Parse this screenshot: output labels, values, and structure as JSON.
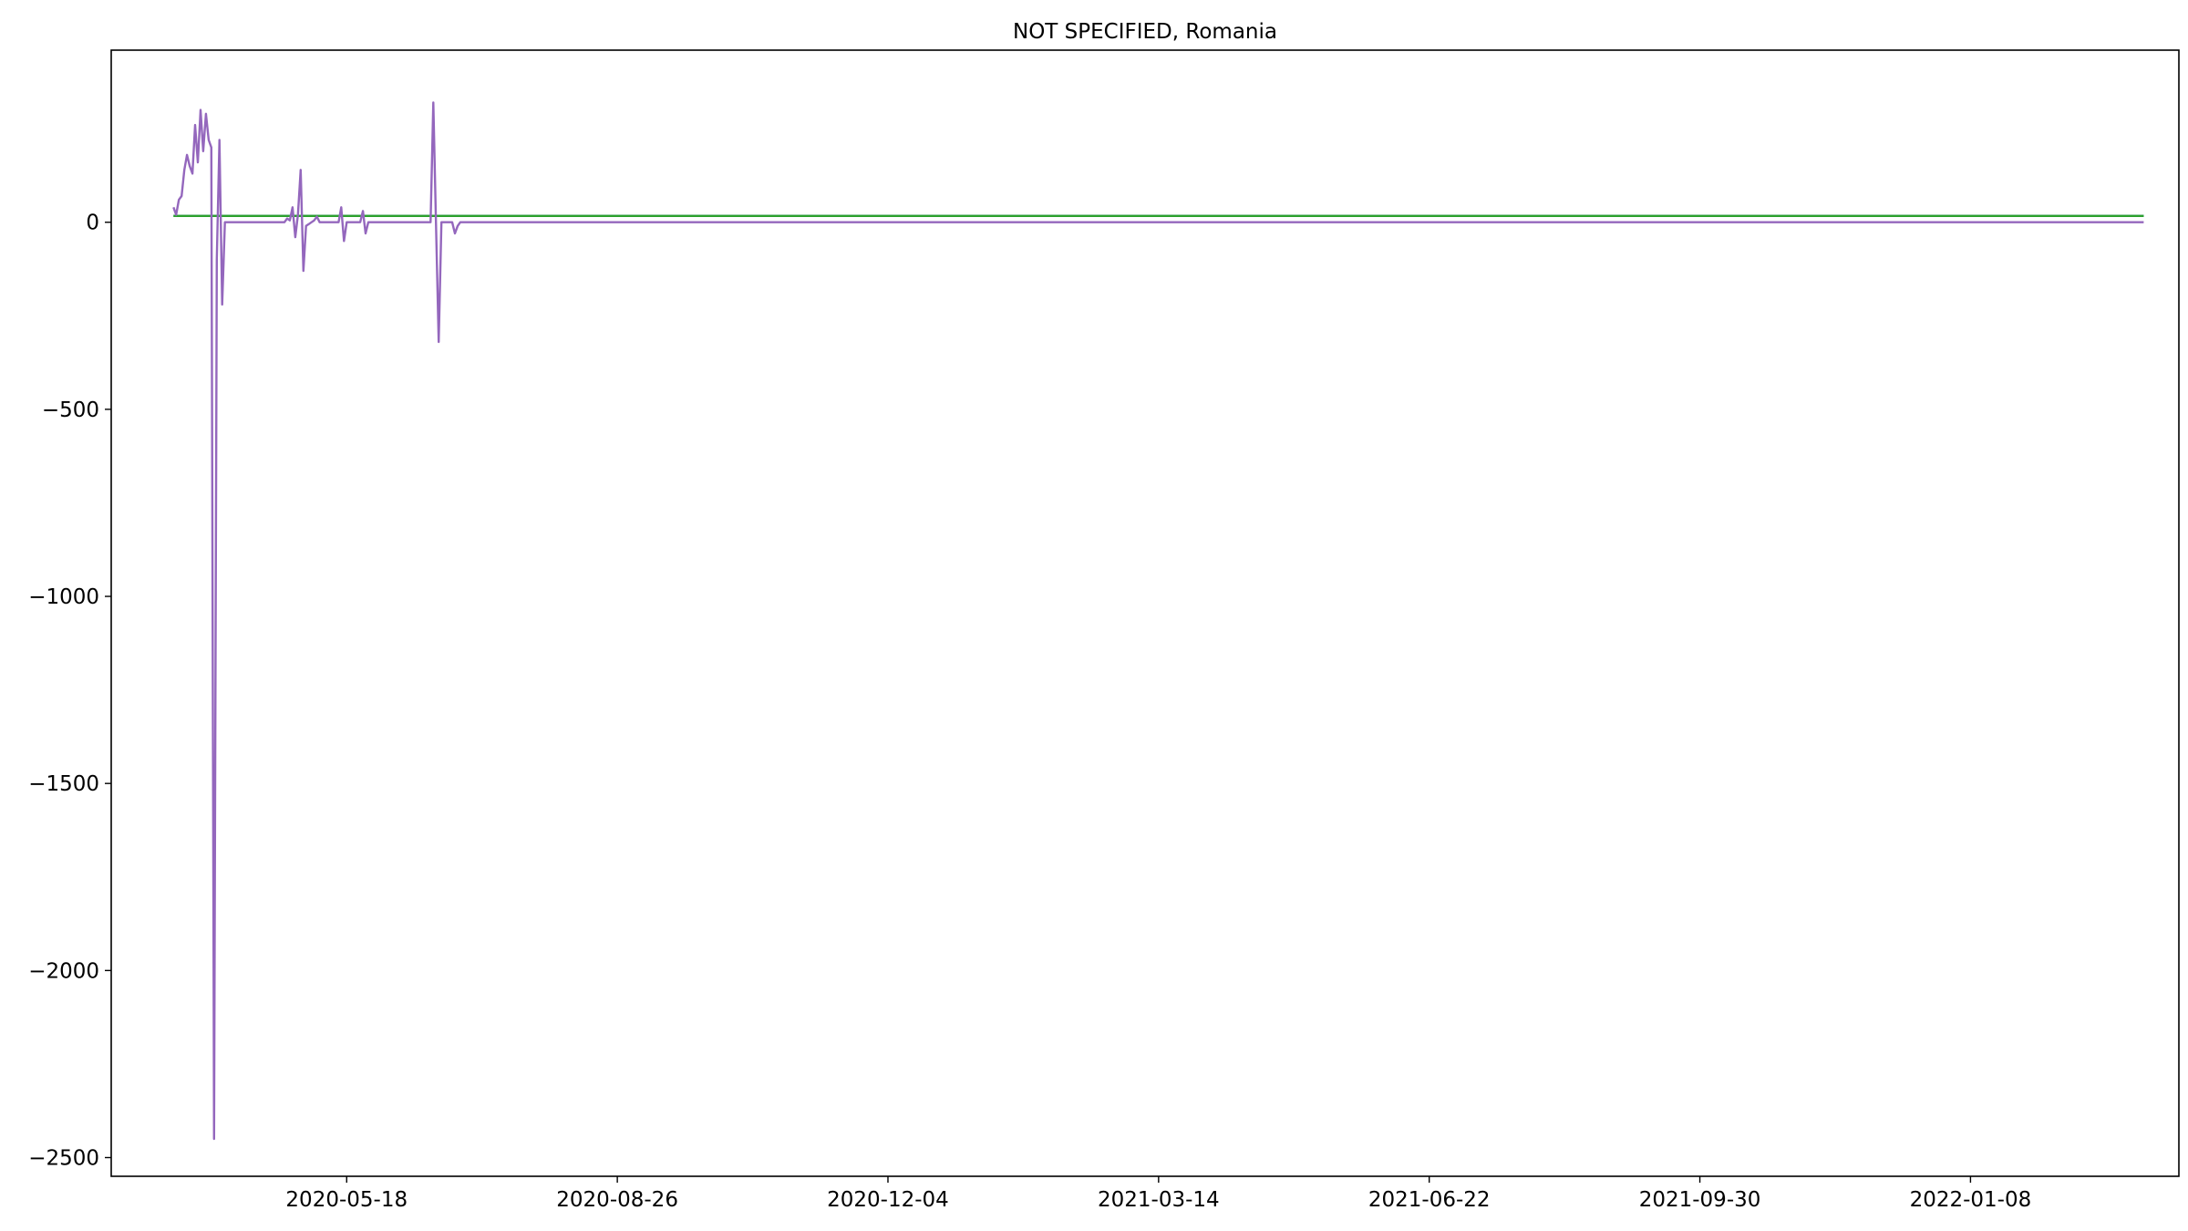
{
  "chart_data": {
    "type": "line",
    "title": "NOT SPECIFIED, Romania",
    "xlabel": "",
    "ylabel": "",
    "xlim": [
      "2020-02-21",
      "2022-03-26"
    ],
    "ylim": [
      -2550,
      460
    ],
    "x_ticks": [
      "2020-05-18",
      "2020-08-26",
      "2020-12-04",
      "2021-03-14",
      "2021-06-22",
      "2021-09-30",
      "2022-01-08"
    ],
    "y_ticks": [
      0,
      -500,
      -1000,
      -1500,
      -2000,
      -2500
    ],
    "y_tick_labels": [
      "0",
      "−500",
      "−1000",
      "−1500",
      "−2000",
      "−2500"
    ],
    "grid": false,
    "series": [
      {
        "color": "#1f77b4",
        "x": [
          "2020-03-15",
          "2022-03-13"
        ],
        "values": [
          17,
          17
        ]
      },
      {
        "color": "#2ca02c",
        "x": [
          "2020-03-15",
          "2022-03-13"
        ],
        "values": [
          17,
          17
        ]
      },
      {
        "color": "#9467bd",
        "x": [
          "2020-03-15",
          "2020-03-16",
          "2020-03-17",
          "2020-03-18",
          "2020-03-19",
          "2020-03-20",
          "2020-03-21",
          "2020-03-22",
          "2020-03-23",
          "2020-03-24",
          "2020-03-25",
          "2020-03-26",
          "2020-03-27",
          "2020-03-28",
          "2020-03-29",
          "2020-03-30",
          "2020-03-31",
          "2020-04-01",
          "2020-04-02",
          "2020-04-03",
          "2020-04-04",
          "2020-04-05",
          "2020-04-06",
          "2020-04-07",
          "2020-04-25",
          "2020-04-26",
          "2020-04-27",
          "2020-04-28",
          "2020-04-29",
          "2020-04-30",
          "2020-05-01",
          "2020-05-02",
          "2020-05-03",
          "2020-05-04",
          "2020-05-05",
          "2020-05-06",
          "2020-05-07",
          "2020-05-08",
          "2020-05-14",
          "2020-05-15",
          "2020-05-16",
          "2020-05-17",
          "2020-05-18",
          "2020-05-19",
          "2020-05-20",
          "2020-05-23",
          "2020-05-24",
          "2020-05-25",
          "2020-05-26",
          "2020-05-27",
          "2020-05-28",
          "2020-06-18",
          "2020-06-19",
          "2020-06-20",
          "2020-06-21",
          "2020-06-22",
          "2020-06-23",
          "2020-06-26",
          "2020-06-27",
          "2020-06-28",
          "2020-06-29",
          "2020-06-30",
          "2022-03-13"
        ],
        "values": [
          40,
          20,
          60,
          70,
          140,
          180,
          150,
          130,
          260,
          160,
          300,
          190,
          290,
          220,
          200,
          -2450,
          -100,
          220,
          -220,
          0,
          0,
          0,
          0,
          0,
          0,
          10,
          5,
          40,
          -40,
          20,
          140,
          -130,
          -10,
          -5,
          0,
          5,
          15,
          0,
          0,
          0,
          40,
          -50,
          0,
          0,
          0,
          0,
          30,
          -30,
          0,
          0,
          0,
          0,
          320,
          0,
          -320,
          0,
          0,
          0,
          -30,
          -10,
          0,
          0,
          0
        ]
      }
    ]
  }
}
